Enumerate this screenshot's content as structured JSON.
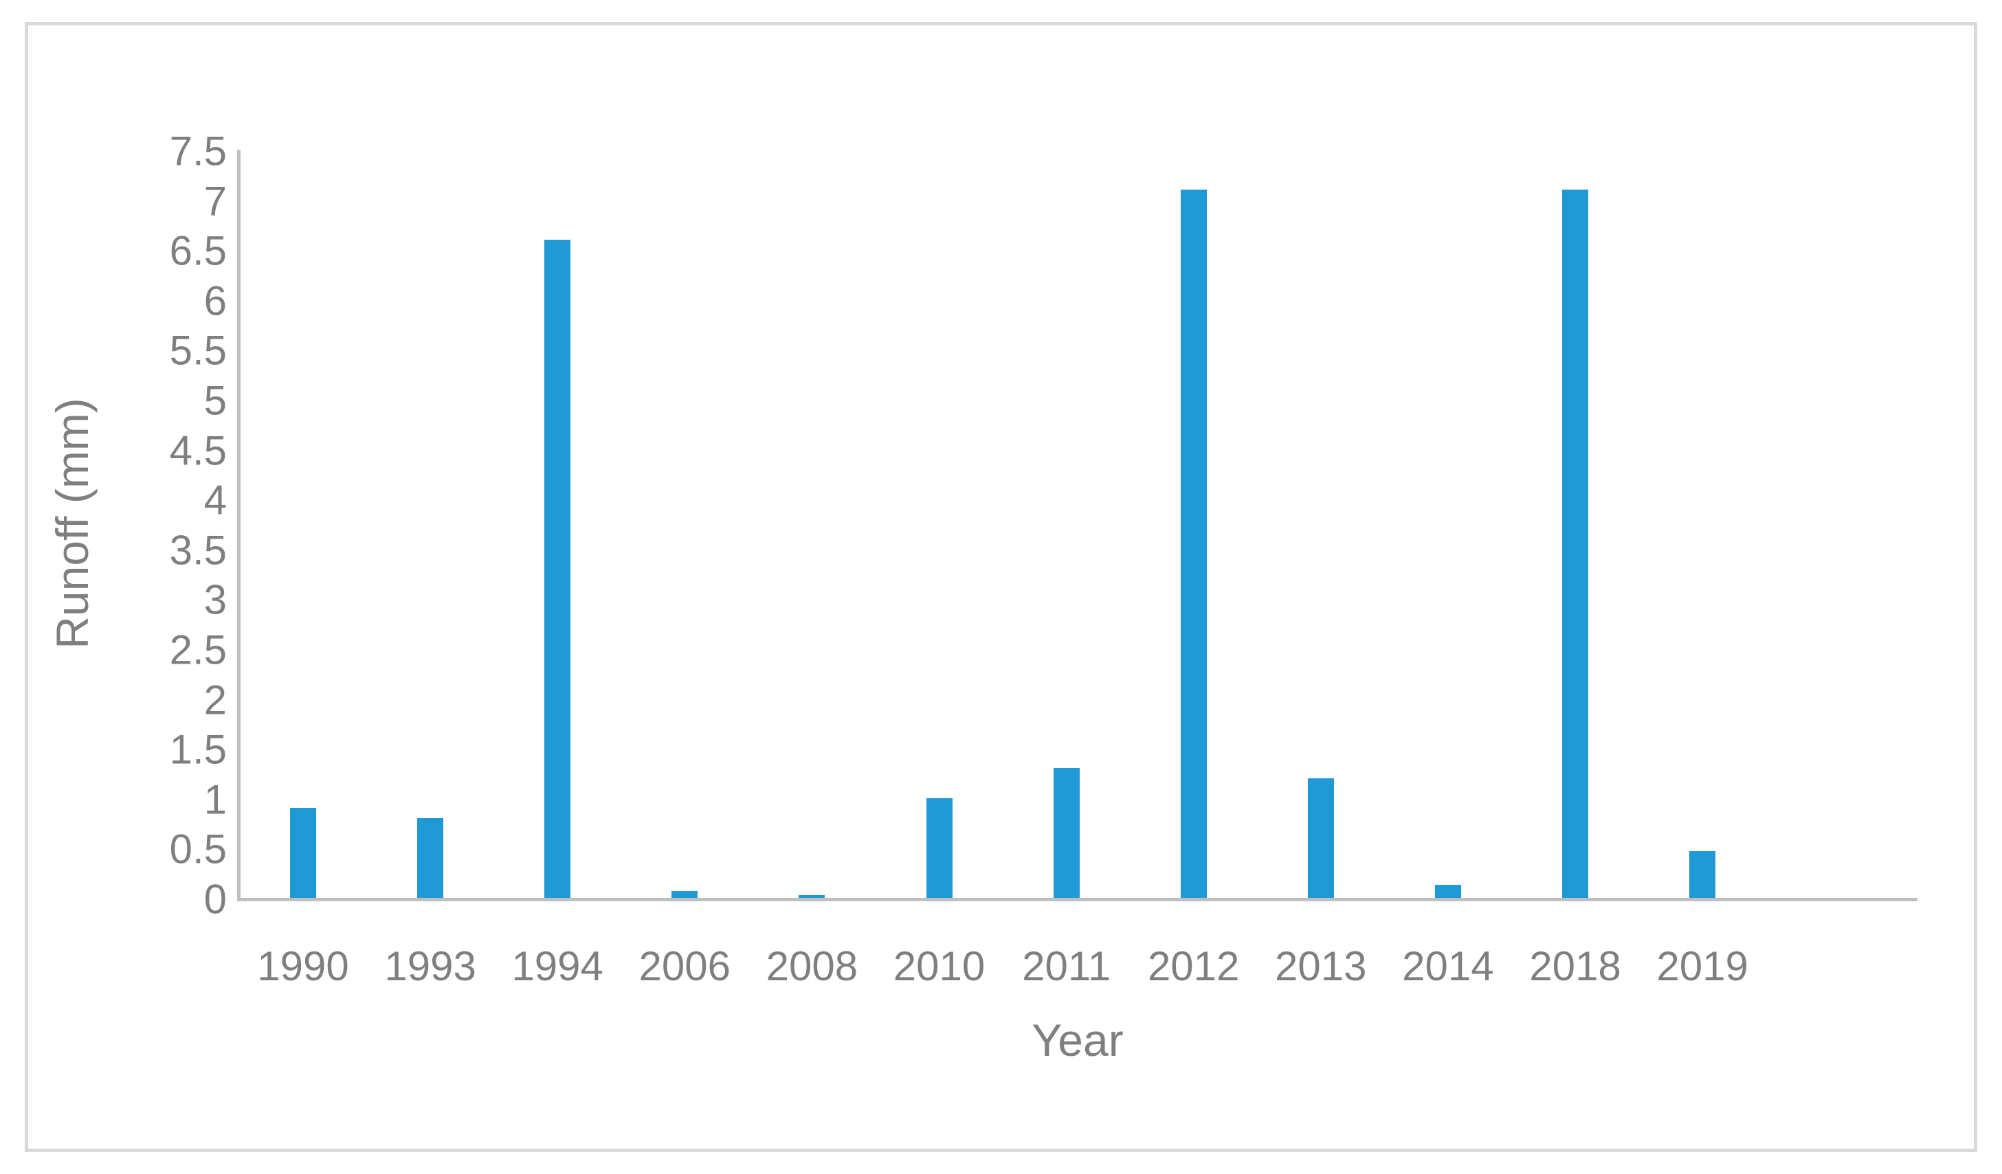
{
  "chart_data": {
    "type": "bar",
    "categories": [
      "1990",
      "1993",
      "1994",
      "2006",
      "2008",
      "2010",
      "2011",
      "2012",
      "2013",
      "2014",
      "2018",
      "2019"
    ],
    "values": [
      0.9,
      0.8,
      6.6,
      0.07,
      0.03,
      1.0,
      1.3,
      7.1,
      1.2,
      0.13,
      7.1,
      0.47
    ],
    "xlabel": "Year",
    "ylabel": "Runoff (mm)",
    "ylim": [
      0,
      7.5
    ],
    "ytick_step": 0.5,
    "ytick_labels": [
      "0",
      "0.5",
      "1",
      "1.5",
      "2",
      "2.5",
      "3",
      "3.5",
      "4",
      "4.5",
      "5",
      "5.5",
      "6",
      "6.5",
      "7",
      "7.5"
    ],
    "grid": false,
    "legend": false,
    "bar_color": "#1f9ad6",
    "axis_color": "#bfbfbf",
    "text_color": "#7f7f7f",
    "frame_color": "#d9d9d9"
  }
}
